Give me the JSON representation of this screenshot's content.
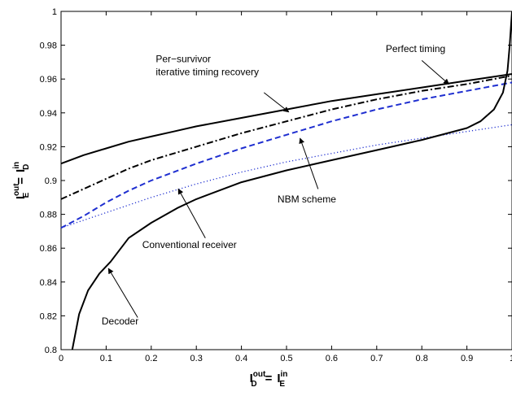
{
  "chart_data": {
    "type": "line",
    "xlabel": {
      "main_left": "I",
      "sup_left": "out",
      "sub_left": "D",
      "eq": "=",
      "main_right": "I",
      "sup_right": "in",
      "sub_right": "E"
    },
    "ylabel": {
      "main_left": "I",
      "sup_left": "out",
      "sub_left": "E",
      "eq": "=",
      "main_right": "I",
      "sup_right": "in",
      "sub_right": "D"
    },
    "xlim": [
      0,
      1
    ],
    "ylim": [
      0.8,
      1.0
    ],
    "x_ticks": [
      0,
      0.1,
      0.2,
      0.3,
      0.4,
      0.5,
      0.6,
      0.7,
      0.8,
      0.9,
      1
    ],
    "x_tick_labels": [
      "0",
      "0.1",
      "0.2",
      "0.3",
      "0.4",
      "0.5",
      "0.6",
      "0.7",
      "0.8",
      "0.9",
      "1"
    ],
    "y_ticks": [
      0.8,
      0.82,
      0.84,
      0.86,
      0.88,
      0.9,
      0.92,
      0.94,
      0.96,
      0.98,
      1
    ],
    "y_tick_labels": [
      "0.8",
      "0.82",
      "0.84",
      "0.86",
      "0.88",
      "0.9",
      "0.92",
      "0.94",
      "0.96",
      "0.98",
      "1"
    ],
    "grid": false,
    "series": [
      {
        "name": "Per-survivor iterative timing recovery",
        "color": "#000000",
        "style": "solid",
        "x": [
          0,
          0.05,
          0.1,
          0.15,
          0.2,
          0.25,
          0.3,
          0.4,
          0.5,
          0.6,
          0.7,
          0.8,
          0.9,
          0.95,
          1
        ],
        "y": [
          0.91,
          0.915,
          0.919,
          0.923,
          0.926,
          0.929,
          0.932,
          0.937,
          0.942,
          0.947,
          0.951,
          0.955,
          0.959,
          0.961,
          0.963
        ]
      },
      {
        "name": "Perfect timing",
        "color": "#000000",
        "style": "dashdot",
        "x": [
          0,
          0.05,
          0.1,
          0.15,
          0.2,
          0.3,
          0.4,
          0.5,
          0.6,
          0.7,
          0.8,
          0.9,
          1
        ],
        "y": [
          0.889,
          0.895,
          0.901,
          0.907,
          0.912,
          0.92,
          0.928,
          0.935,
          0.942,
          0.948,
          0.953,
          0.957,
          0.962
        ]
      },
      {
        "name": "NBM scheme",
        "color": "#1f2fd0",
        "style": "dashed",
        "x": [
          0,
          0.05,
          0.1,
          0.15,
          0.2,
          0.3,
          0.4,
          0.5,
          0.6,
          0.7,
          0.8,
          0.9,
          1
        ],
        "y": [
          0.872,
          0.879,
          0.887,
          0.894,
          0.9,
          0.91,
          0.919,
          0.927,
          0.935,
          0.942,
          0.948,
          0.953,
          0.958
        ]
      },
      {
        "name": "Conventional receiver",
        "color": "#1f2fd0",
        "style": "dotted",
        "x": [
          0,
          0.1,
          0.2,
          0.3,
          0.4,
          0.5,
          0.6,
          0.7,
          0.8,
          0.9,
          1
        ],
        "y": [
          0.872,
          0.881,
          0.89,
          0.898,
          0.905,
          0.911,
          0.916,
          0.921,
          0.925,
          0.929,
          0.933
        ]
      },
      {
        "name": "Decoder",
        "color": "#000000",
        "style": "solid",
        "x": [
          0.025,
          0.04,
          0.06,
          0.085,
          0.11,
          0.15,
          0.2,
          0.26,
          0.3,
          0.4,
          0.5,
          0.6,
          0.7,
          0.8,
          0.9,
          0.93,
          0.96,
          0.98,
          0.99,
          0.995,
          1
        ],
        "y": [
          0.8,
          0.821,
          0.835,
          0.845,
          0.852,
          0.866,
          0.875,
          0.884,
          0.889,
          0.899,
          0.906,
          0.912,
          0.918,
          0.924,
          0.931,
          0.935,
          0.942,
          0.952,
          0.965,
          0.98,
          1.0
        ]
      }
    ],
    "annotations": [
      {
        "lines": [
          "Per−survivor",
          "iterative timing recovery"
        ],
        "text_x": 0.21,
        "text_y": 0.97,
        "arrow_from": [
          0.45,
          0.952
        ],
        "arrow_to": [
          0.505,
          0.9405
        ]
      },
      {
        "lines": [
          "Perfect timing"
        ],
        "text_x": 0.72,
        "text_y": 0.976,
        "arrow_from": [
          0.8,
          0.971
        ],
        "arrow_to": [
          0.86,
          0.957
        ]
      },
      {
        "lines": [
          "NBM scheme"
        ],
        "text_x": 0.48,
        "text_y": 0.887,
        "arrow_from": [
          0.57,
          0.895
        ],
        "arrow_to": [
          0.53,
          0.925
        ]
      },
      {
        "lines": [
          "Conventional receiver"
        ],
        "text_x": 0.18,
        "text_y": 0.86,
        "arrow_from": [
          0.32,
          0.866
        ],
        "arrow_to": [
          0.26,
          0.895
        ]
      },
      {
        "lines": [
          "Decoder"
        ],
        "text_x": 0.09,
        "text_y": 0.815,
        "arrow_from": [
          0.17,
          0.819
        ],
        "arrow_to": [
          0.105,
          0.848
        ]
      }
    ]
  }
}
